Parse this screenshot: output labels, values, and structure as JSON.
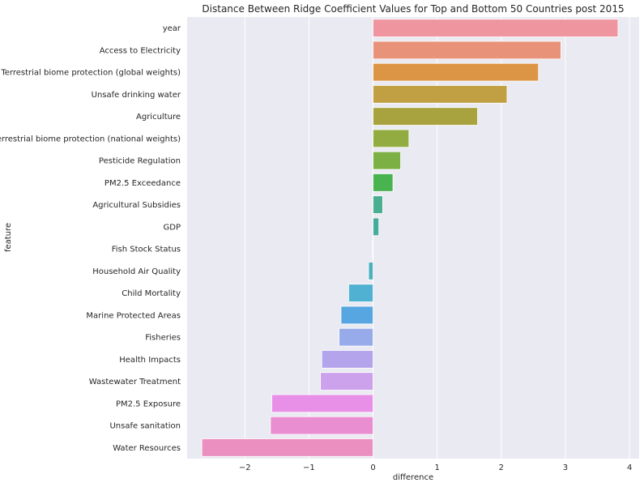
{
  "chart_data": {
    "type": "bar",
    "orientation": "horizontal",
    "title": "Distance Between Ridge Coefficient Values for Top and Bottom 50 Countries post 2015",
    "xlabel": "difference",
    "ylabel": "feature",
    "xlim": [
      -2.9,
      4.15
    ],
    "xticks": [
      -2,
      -1,
      0,
      1,
      2,
      3,
      4
    ],
    "xtick_labels": [
      "−2",
      "−1",
      "0",
      "1",
      "2",
      "3",
      "4"
    ],
    "grid": true,
    "background": "#eaeaf2",
    "categories": [
      "year",
      "Access to Electricity",
      "Terrestrial biome protection (global weights)",
      "Unsafe drinking water",
      "Agriculture",
      "Terrestrial biome protection (national weights)",
      "Pesticide Regulation",
      "PM2.5 Exceedance",
      "Agricultural Subsidies",
      "GDP",
      "Fish Stock Status",
      "Household Air Quality",
      "Child Mortality",
      "Marine Protected Areas",
      "Fisheries",
      "Health Impacts",
      "Wastewater Treatment",
      "PM2.5 Exposure",
      "Unsafe sanitation",
      "Water Resources"
    ],
    "values": [
      3.82,
      2.93,
      2.58,
      2.09,
      1.63,
      0.56,
      0.43,
      0.31,
      0.15,
      0.09,
      -0.01,
      -0.07,
      -0.38,
      -0.5,
      -0.53,
      -0.8,
      -0.82,
      -1.58,
      -1.6,
      -2.67
    ],
    "colors": [
      "#ee959f",
      "#e8927a",
      "#dc9544",
      "#c1a044",
      "#a9a33f",
      "#93ac42",
      "#7caf44",
      "#49b350",
      "#4aae91",
      "#46ab9b",
      "#4aaeab",
      "#4db0bf",
      "#51b1d3",
      "#58a6e1",
      "#97abea",
      "#b3a4ec",
      "#cda2ec",
      "#e88fe8",
      "#ea8ed2",
      "#ea8fbf"
    ]
  }
}
